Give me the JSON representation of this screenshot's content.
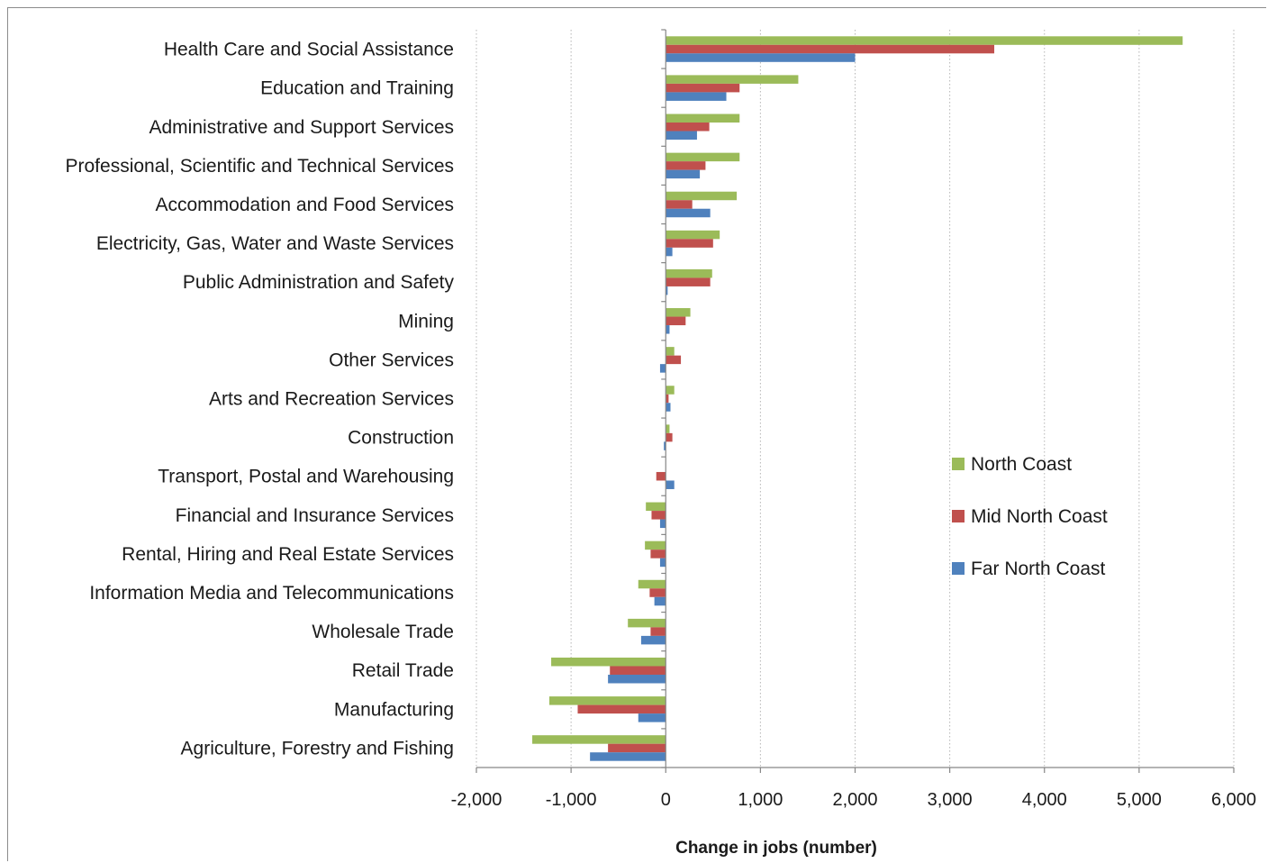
{
  "chart_data": {
    "type": "bar",
    "orientation": "horizontal",
    "categories": [
      "Health Care and Social Assistance",
      "Education and Training",
      "Administrative and Support Services",
      "Professional, Scientific and Technical Services",
      "Accommodation and Food Services",
      "Electricity, Gas, Water and Waste Services",
      "Public Administration and Safety",
      "Mining",
      "Other Services",
      "Arts and Recreation Services",
      "Construction",
      "Transport, Postal and Warehousing",
      "Financial and Insurance Services",
      "Rental, Hiring and Real Estate Services",
      "Information Media and Telecommunications",
      "Wholesale Trade",
      "Retail Trade",
      "Manufacturing",
      "Agriculture, Forestry and Fishing"
    ],
    "series": [
      {
        "name": "North Coast",
        "color": "#9bbb59",
        "values": [
          5460,
          1400,
          780,
          780,
          750,
          570,
          490,
          260,
          90,
          90,
          40,
          0,
          -210,
          -220,
          -290,
          -400,
          -1210,
          -1230,
          -1410
        ]
      },
      {
        "name": "Mid North Coast",
        "color": "#c0504d",
        "values": [
          3470,
          780,
          460,
          420,
          280,
          500,
          470,
          210,
          160,
          30,
          70,
          -100,
          -150,
          -160,
          -170,
          -160,
          -590,
          -930,
          -610
        ]
      },
      {
        "name": "Far North Coast",
        "color": "#4f81bd",
        "values": [
          2000,
          640,
          330,
          360,
          470,
          70,
          20,
          40,
          -60,
          50,
          -20,
          90,
          -60,
          -60,
          -120,
          -260,
          -610,
          -290,
          -800
        ]
      }
    ],
    "xlabel": "Change in jobs (number)",
    "xlim": [
      -2000,
      6000
    ],
    "xticks": [
      -2000,
      -1000,
      0,
      1000,
      2000,
      3000,
      4000,
      5000,
      6000
    ],
    "xtick_labels": [
      "-2,000",
      "-1,000",
      "0",
      "1,000",
      "2,000",
      "3,000",
      "4,000",
      "5,000",
      "6,000"
    ],
    "grid": "vertical dotted",
    "legend": "right"
  }
}
